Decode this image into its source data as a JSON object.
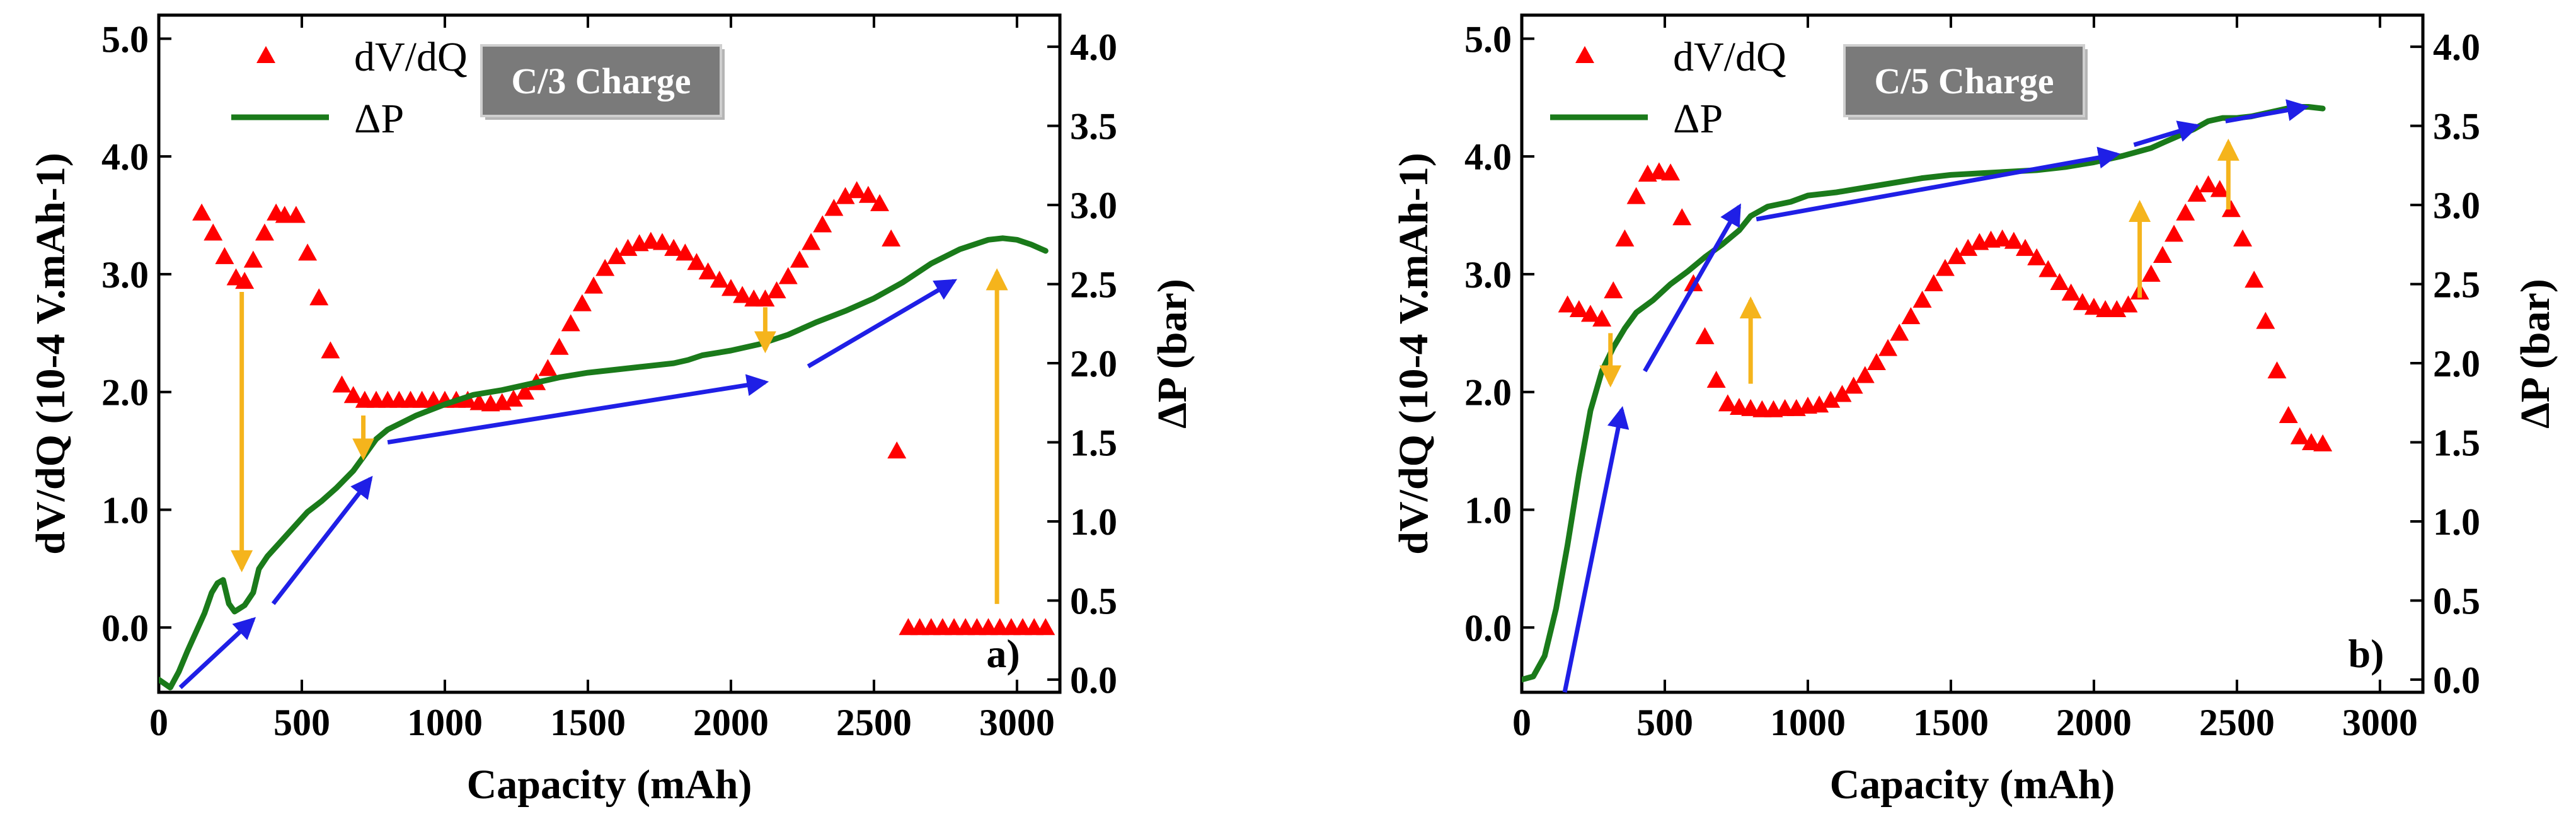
{
  "chart_data": [
    {
      "type": "scatter+line",
      "panel_label": "a)",
      "condition": "C/3 Charge",
      "xlabel": "Capacity (mAh)",
      "ylabel_left": "dV/dQ (10-4 V.mAh-1)",
      "ylabel_right": "ΔP (bar)",
      "xlim": [
        0,
        3150
      ],
      "xticks": [
        0,
        500,
        1000,
        1500,
        2000,
        2500,
        3000
      ],
      "ylim_left": [
        -0.55,
        5.2
      ],
      "yticks_left": [
        "0.0",
        "1.0",
        "2.0",
        "3.0",
        "4.0",
        "5.0"
      ],
      "ylim_right": [
        -0.08,
        4.2
      ],
      "yticks_right": [
        "0.0",
        "0.5",
        "1.0",
        "1.5",
        "2.0",
        "2.5",
        "3.0",
        "3.5",
        "4.0"
      ],
      "legend": [
        "dV/dQ",
        "ΔP"
      ],
      "series": [
        {
          "name": "dV/dQ",
          "marker": "triangle",
          "color": "#ff0000",
          "axis": "left",
          "x": [
            150,
            190,
            230,
            270,
            300,
            330,
            370,
            410,
            440,
            480,
            520,
            560,
            600,
            640,
            680,
            720,
            760,
            800,
            840,
            880,
            920,
            960,
            1000,
            1040,
            1080,
            1120,
            1160,
            1200,
            1240,
            1280,
            1320,
            1360,
            1400,
            1440,
            1480,
            1520,
            1560,
            1600,
            1640,
            1680,
            1720,
            1760,
            1800,
            1840,
            1880,
            1920,
            1960,
            2000,
            2040,
            2080,
            2120,
            2160,
            2200,
            2240,
            2280,
            2320,
            2360,
            2400,
            2440,
            2480,
            2520,
            2560,
            2580,
            2620,
            2660,
            2700,
            2740,
            2780,
            2820,
            2860,
            2900,
            2940,
            2980,
            3020,
            3060,
            3100
          ],
          "y": [
            3.52,
            3.35,
            3.15,
            2.97,
            2.94,
            3.12,
            3.35,
            3.52,
            3.5,
            3.5,
            3.18,
            2.8,
            2.35,
            2.06,
            1.97,
            1.93,
            1.93,
            1.93,
            1.93,
            1.93,
            1.93,
            1.93,
            1.93,
            1.93,
            1.93,
            1.91,
            1.9,
            1.91,
            1.94,
            2.0,
            2.08,
            2.2,
            2.38,
            2.58,
            2.75,
            2.9,
            3.05,
            3.15,
            3.22,
            3.26,
            3.28,
            3.27,
            3.22,
            3.18,
            3.1,
            3.02,
            2.95,
            2.88,
            2.82,
            2.79,
            2.79,
            2.86,
            2.98,
            3.12,
            3.27,
            3.42,
            3.56,
            3.66,
            3.71,
            3.67,
            3.6,
            3.3,
            1.5,
            0.0,
            0.0,
            0.0,
            0.0,
            0.0,
            0.0,
            0.0,
            0.0,
            0.0,
            0.0,
            0.0,
            0.0,
            0.0
          ]
        },
        {
          "name": "ΔP",
          "marker": "line",
          "color": "#1a7a1a",
          "axis": "right",
          "x": [
            0,
            40,
            70,
            100,
            130,
            160,
            185,
            205,
            225,
            245,
            265,
            300,
            330,
            350,
            380,
            420,
            470,
            520,
            570,
            620,
            680,
            720,
            760,
            800,
            900,
            1000,
            1100,
            1200,
            1300,
            1400,
            1500,
            1600,
            1700,
            1800,
            1850,
            1900,
            2000,
            2100,
            2200,
            2300,
            2400,
            2500,
            2600,
            2700,
            2800,
            2900,
            2950,
            3000,
            3050,
            3100
          ],
          "y": [
            0.0,
            -0.05,
            0.05,
            0.18,
            0.3,
            0.42,
            0.55,
            0.61,
            0.63,
            0.48,
            0.43,
            0.47,
            0.55,
            0.7,
            0.78,
            0.86,
            0.96,
            1.06,
            1.13,
            1.21,
            1.32,
            1.42,
            1.52,
            1.58,
            1.67,
            1.74,
            1.8,
            1.83,
            1.87,
            1.91,
            1.94,
            1.96,
            1.98,
            2.0,
            2.02,
            2.05,
            2.08,
            2.12,
            2.18,
            2.26,
            2.33,
            2.41,
            2.51,
            2.63,
            2.72,
            2.78,
            2.79,
            2.78,
            2.75,
            2.71
          ]
        }
      ]
    },
    {
      "type": "scatter+line",
      "panel_label": "b)",
      "condition": "C/5 Charge",
      "xlabel": "Capacity (mAh)",
      "ylabel_left": "dV/dQ (10-4 V.mAh-1)",
      "ylabel_right": "ΔP (bar)",
      "xlim": [
        0,
        3150
      ],
      "xticks": [
        0,
        500,
        1000,
        1500,
        2000,
        2500,
        3000
      ],
      "ylim_left": [
        -0.55,
        5.2
      ],
      "yticks_left": [
        "0.0",
        "1.0",
        "2.0",
        "3.0",
        "4.0",
        "5.0"
      ],
      "ylim_right": [
        -0.08,
        4.2
      ],
      "yticks_right": [
        "0.0",
        "0.5",
        "1.0",
        "1.5",
        "2.0",
        "2.5",
        "3.0",
        "3.5",
        "4.0"
      ],
      "legend": [
        "dV/dQ",
        "ΔP"
      ],
      "series": [
        {
          "name": "dV/dQ",
          "marker": "triangle",
          "color": "#ff0000",
          "axis": "left",
          "x": [
            160,
            200,
            240,
            280,
            320,
            360,
            400,
            440,
            480,
            520,
            560,
            600,
            640,
            680,
            720,
            760,
            800,
            840,
            880,
            920,
            960,
            1000,
            1040,
            1080,
            1120,
            1160,
            1200,
            1240,
            1280,
            1320,
            1360,
            1400,
            1440,
            1480,
            1520,
            1560,
            1600,
            1640,
            1680,
            1720,
            1760,
            1800,
            1840,
            1880,
            1920,
            1960,
            2000,
            2040,
            2080,
            2120,
            2160,
            2200,
            2240,
            2280,
            2320,
            2360,
            2400,
            2440,
            2480,
            2520,
            2560,
            2600,
            2640,
            2680,
            2720,
            2760,
            2800
          ],
          "y": [
            2.74,
            2.7,
            2.66,
            2.62,
            2.86,
            3.3,
            3.66,
            3.85,
            3.87,
            3.86,
            3.48,
            2.92,
            2.47,
            2.1,
            1.9,
            1.87,
            1.86,
            1.85,
            1.85,
            1.86,
            1.86,
            1.88,
            1.89,
            1.93,
            1.98,
            2.05,
            2.14,
            2.25,
            2.37,
            2.5,
            2.64,
            2.78,
            2.92,
            3.05,
            3.15,
            3.22,
            3.27,
            3.29,
            3.3,
            3.28,
            3.22,
            3.14,
            3.04,
            2.93,
            2.84,
            2.76,
            2.72,
            2.7,
            2.7,
            2.74,
            2.85,
            3.0,
            3.16,
            3.34,
            3.52,
            3.68,
            3.76,
            3.72,
            3.55,
            3.3,
            2.95,
            2.6,
            2.18,
            1.8,
            1.62,
            1.57,
            1.56
          ]
        },
        {
          "name": "ΔP",
          "marker": "line",
          "color": "#1a7a1a",
          "axis": "right",
          "x": [
            0,
            40,
            80,
            120,
            160,
            200,
            240,
            280,
            320,
            360,
            400,
            460,
            520,
            580,
            640,
            700,
            760,
            800,
            860,
            940,
            1000,
            1100,
            1200,
            1300,
            1400,
            1500,
            1600,
            1700,
            1800,
            1900,
            2000,
            2100,
            2200,
            2250,
            2300,
            2350,
            2400,
            2450,
            2500,
            2550,
            2600,
            2650,
            2700,
            2750,
            2800
          ],
          "y": [
            0.0,
            0.02,
            0.15,
            0.45,
            0.85,
            1.3,
            1.7,
            1.95,
            2.1,
            2.22,
            2.32,
            2.4,
            2.5,
            2.58,
            2.67,
            2.75,
            2.84,
            2.93,
            2.99,
            3.02,
            3.06,
            3.08,
            3.11,
            3.14,
            3.17,
            3.19,
            3.2,
            3.21,
            3.22,
            3.24,
            3.27,
            3.31,
            3.36,
            3.4,
            3.44,
            3.48,
            3.53,
            3.55,
            3.55,
            3.56,
            3.58,
            3.6,
            3.62,
            3.62,
            3.61
          ]
        }
      ]
    }
  ]
}
